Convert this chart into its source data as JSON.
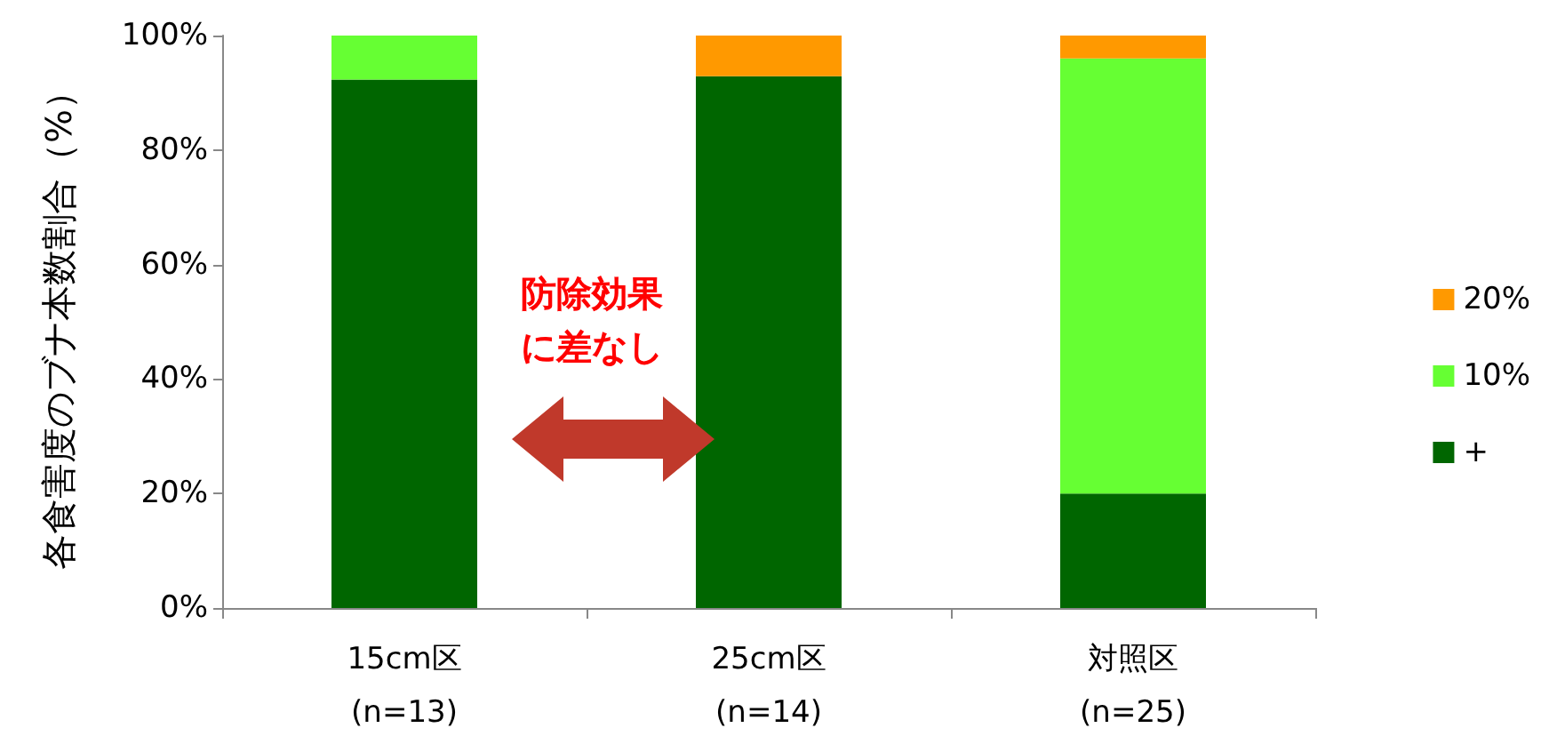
{
  "chart_data": {
    "type": "bar",
    "stacked": true,
    "ylabel": "各食害度のブナ本数割合（%）",
    "categories": [
      "15cm区\n(n=13)",
      "25cm区\n(n=14)",
      "対照区\n(n=25)"
    ],
    "series": [
      {
        "name": "+",
        "color": "#006600",
        "values": [
          92.3,
          92.9,
          20
        ]
      },
      {
        "name": "10%",
        "color": "#66ff33",
        "values": [
          7.7,
          0,
          76
        ]
      },
      {
        "name": "20%",
        "color": "#ff9900",
        "values": [
          0,
          7.1,
          4
        ]
      }
    ],
    "ylim": [
      0,
      100
    ],
    "yticks": [
      {
        "value": 0,
        "label": "0%"
      },
      {
        "value": 20,
        "label": "20%"
      },
      {
        "value": 40,
        "label": "40%"
      },
      {
        "value": 60,
        "label": "60%"
      },
      {
        "value": 80,
        "label": "80%"
      },
      {
        "value": 100,
        "label": "100%"
      }
    ],
    "grid": false,
    "legend": "right",
    "annotations": [
      "防除効果",
      "に差なし"
    ]
  }
}
